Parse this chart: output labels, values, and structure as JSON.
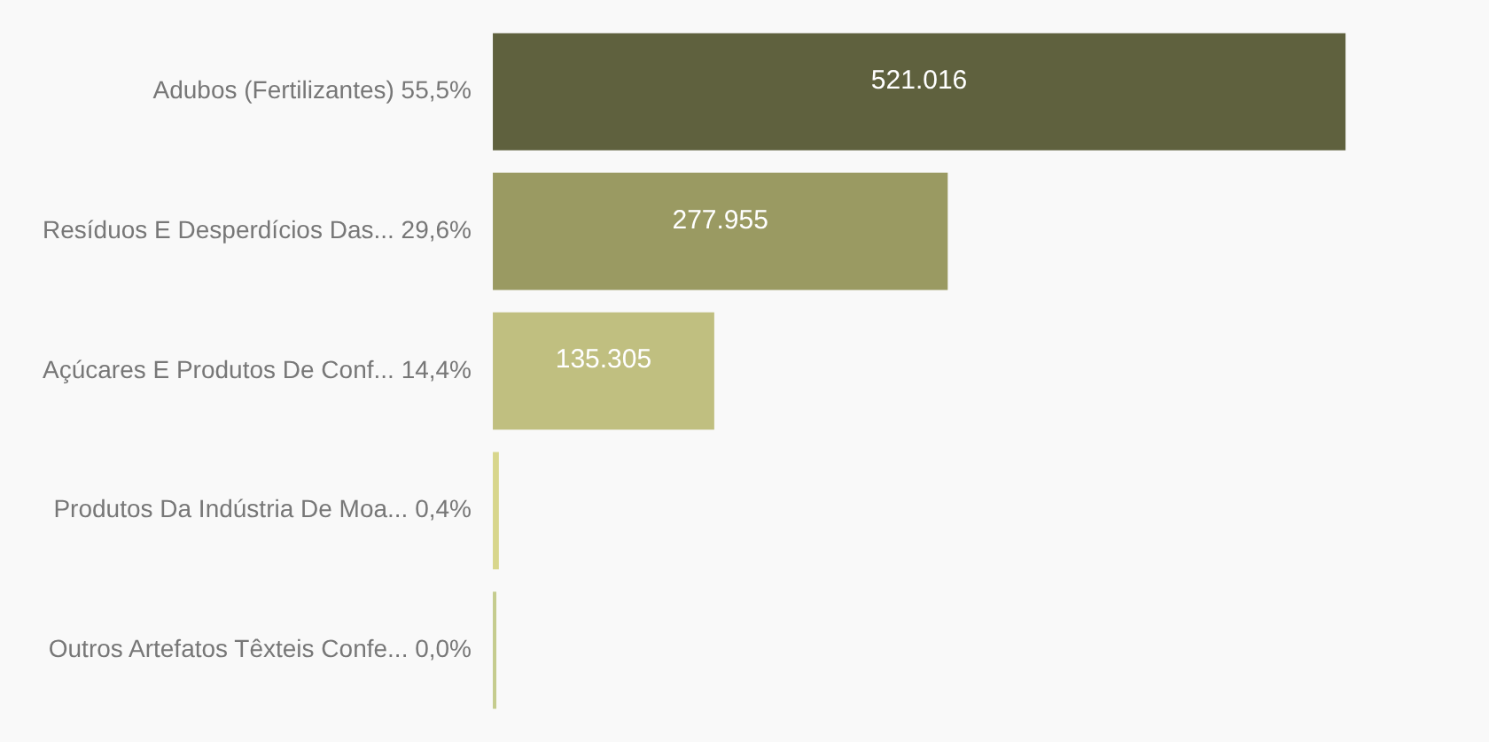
{
  "chart_data": {
    "type": "bar",
    "orientation": "horizontal",
    "categories": [
      "Adubos (Fertilizantes) 55,5%",
      "Resíduos E Desperdícios Das... 29,6%",
      "Açúcares E Produtos De Conf... 14,4%",
      "Produtos Da Indústria De Moa... 0,4%",
      "Outros Artefatos Têxteis Confe... 0,0%"
    ],
    "values": [
      521016,
      277955,
      135305,
      3700,
      400
    ],
    "colors": [
      "#5f613e",
      "#9a9a62",
      "#c0bf80",
      "#d8d68c",
      "#c5cc8e"
    ],
    "value_labels": [
      "521.016",
      "277.955",
      "135.305",
      null,
      null
    ],
    "legend": false
  }
}
